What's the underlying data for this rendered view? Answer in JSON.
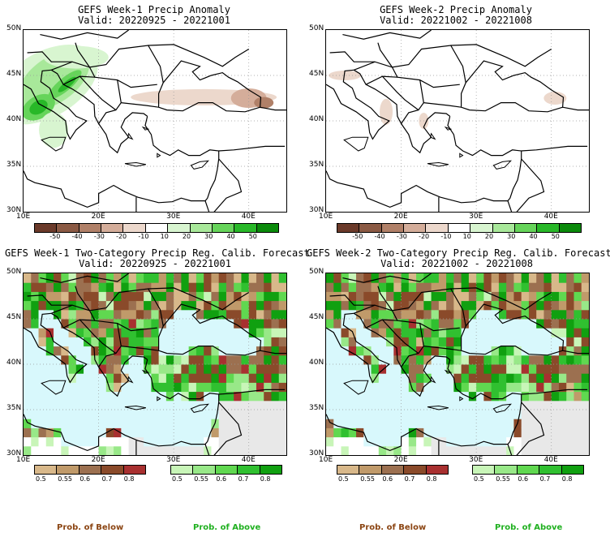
{
  "panels": [
    {
      "title": "GEFS Week-1 Precip Anomaly",
      "valid": "Valid: 20220925 - 20221001",
      "kind": "anomaly"
    },
    {
      "title": "GEFS Week-2 Precip Anomaly",
      "valid": "Valid: 20221002 - 20221008",
      "kind": "anomaly"
    },
    {
      "title": "GEFS Week-1 Two-Category Precip Reg. Calib. Forecast",
      "valid": "Valid: 20220925 - 20221001",
      "kind": "prob"
    },
    {
      "title": "GEFS Week-2 Two-Category Precip Reg. Calib. Forecast",
      "valid": "Valid: 20221002 - 20221008",
      "kind": "prob"
    }
  ],
  "axes": {
    "lat_labels": [
      "50N",
      "45N",
      "40N",
      "35N",
      "30N"
    ],
    "lon_labels": [
      "10E",
      "20E",
      "30E",
      "40E"
    ]
  },
  "anomaly_colorbar": {
    "labels": [
      "-50",
      "-40",
      "-30",
      "-20",
      "-10",
      "10",
      "20",
      "30",
      "40",
      "50"
    ],
    "colors": [
      "#6b3a2a",
      "#8b5a44",
      "#b08068",
      "#d4ad9a",
      "#ecd8cc",
      "#ffffff",
      "#d8f5d0",
      "#a8e89a",
      "#66d45a",
      "#28b828",
      "#0a8a0a"
    ]
  },
  "prob_colorbar": {
    "below_labels": [
      "0.5",
      "0.55",
      "0.6",
      "0.7",
      "0.8"
    ],
    "above_labels": [
      "0.5",
      "0.55",
      "0.6",
      "0.7",
      "0.8"
    ],
    "below_colors": [
      "#d8b88a",
      "#c09a6a",
      "#9c7050",
      "#8a4a2a",
      "#a83030"
    ],
    "above_colors": [
      "#c8f5b8",
      "#98e888",
      "#60d850",
      "#30c030",
      "#10a010"
    ],
    "below_title": "Prob. of Below",
    "above_title": "Prob. of Above"
  },
  "colors": {
    "sea": "#d8f8fc",
    "noskill": "#e8e8e8",
    "below_title": "#8b4513",
    "above_title": "#20b020"
  }
}
